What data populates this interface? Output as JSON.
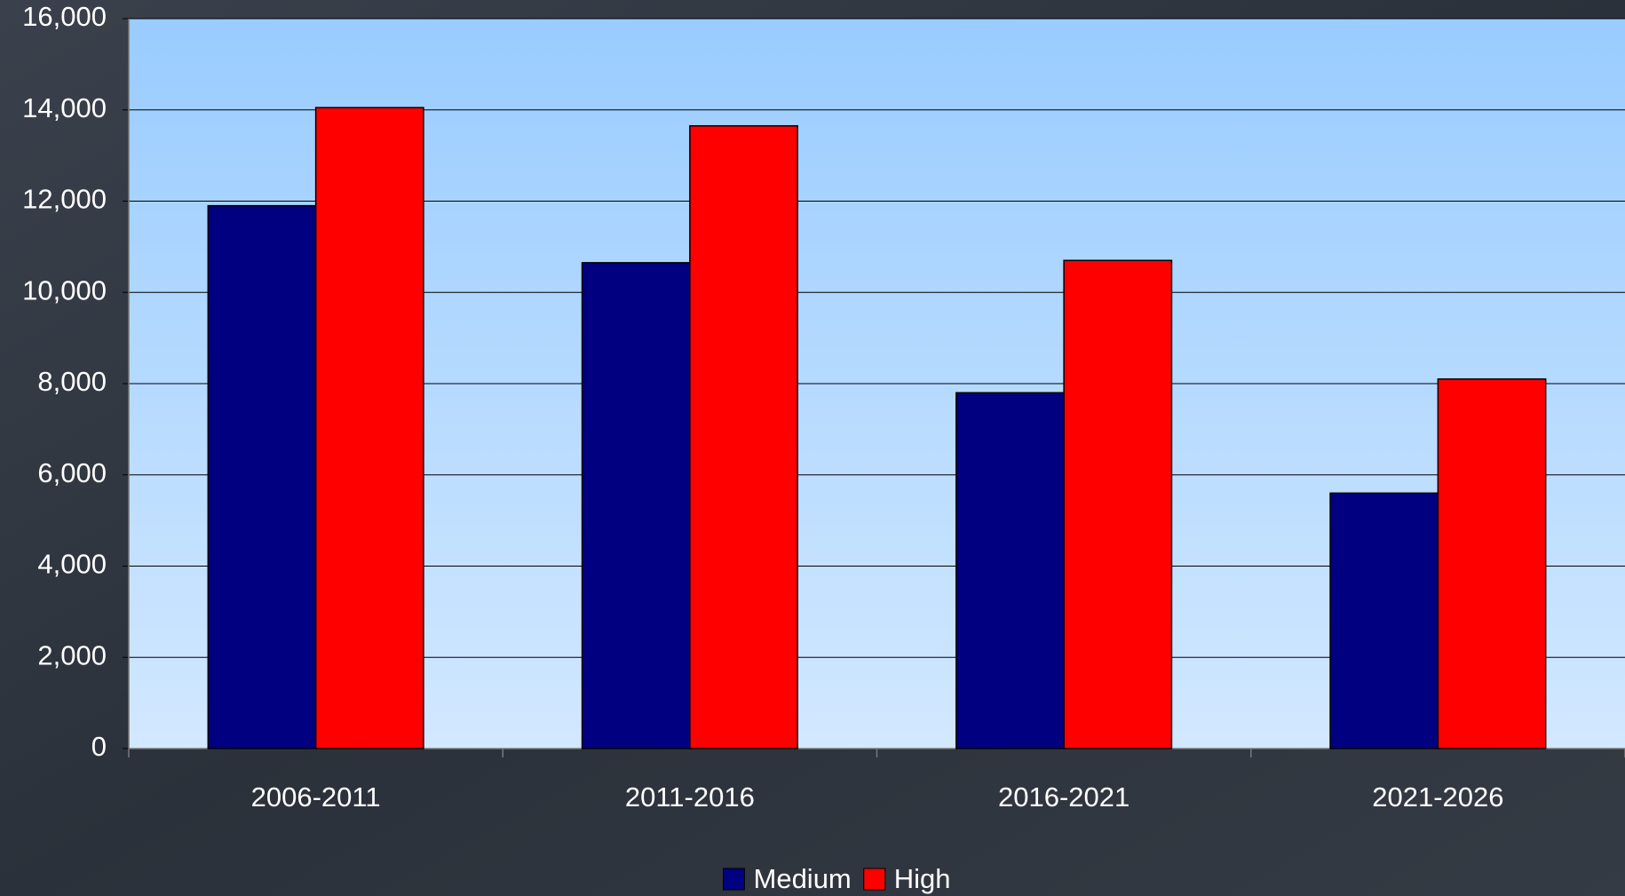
{
  "chart_data": {
    "type": "bar",
    "categories": [
      "2006-2011",
      "2011-2016",
      "2016-2021",
      "2021-2026"
    ],
    "series": [
      {
        "name": "Medium",
        "color": "#000080",
        "values": [
          11900,
          10650,
          7800,
          5600
        ]
      },
      {
        "name": "High",
        "color": "#ff0000",
        "values": [
          14050,
          13650,
          10700,
          8100
        ]
      }
    ],
    "ylim": [
      0,
      16000
    ],
    "yticks": [
      0,
      {
        "value": 2000,
        "label": "2,000"
      },
      {
        "value": 4000,
        "label": "4,000"
      },
      {
        "value": 6000,
        "label": "6,000"
      },
      {
        "value": 8000,
        "label": "8,000"
      },
      {
        "value": 10000,
        "label": "10,000"
      },
      {
        "value": 12000,
        "label": "12,000"
      },
      {
        "value": 14000,
        "label": "14,000"
      },
      {
        "value": 16000,
        "label": "16,000"
      }
    ],
    "grid": true,
    "legend": "bottom"
  }
}
